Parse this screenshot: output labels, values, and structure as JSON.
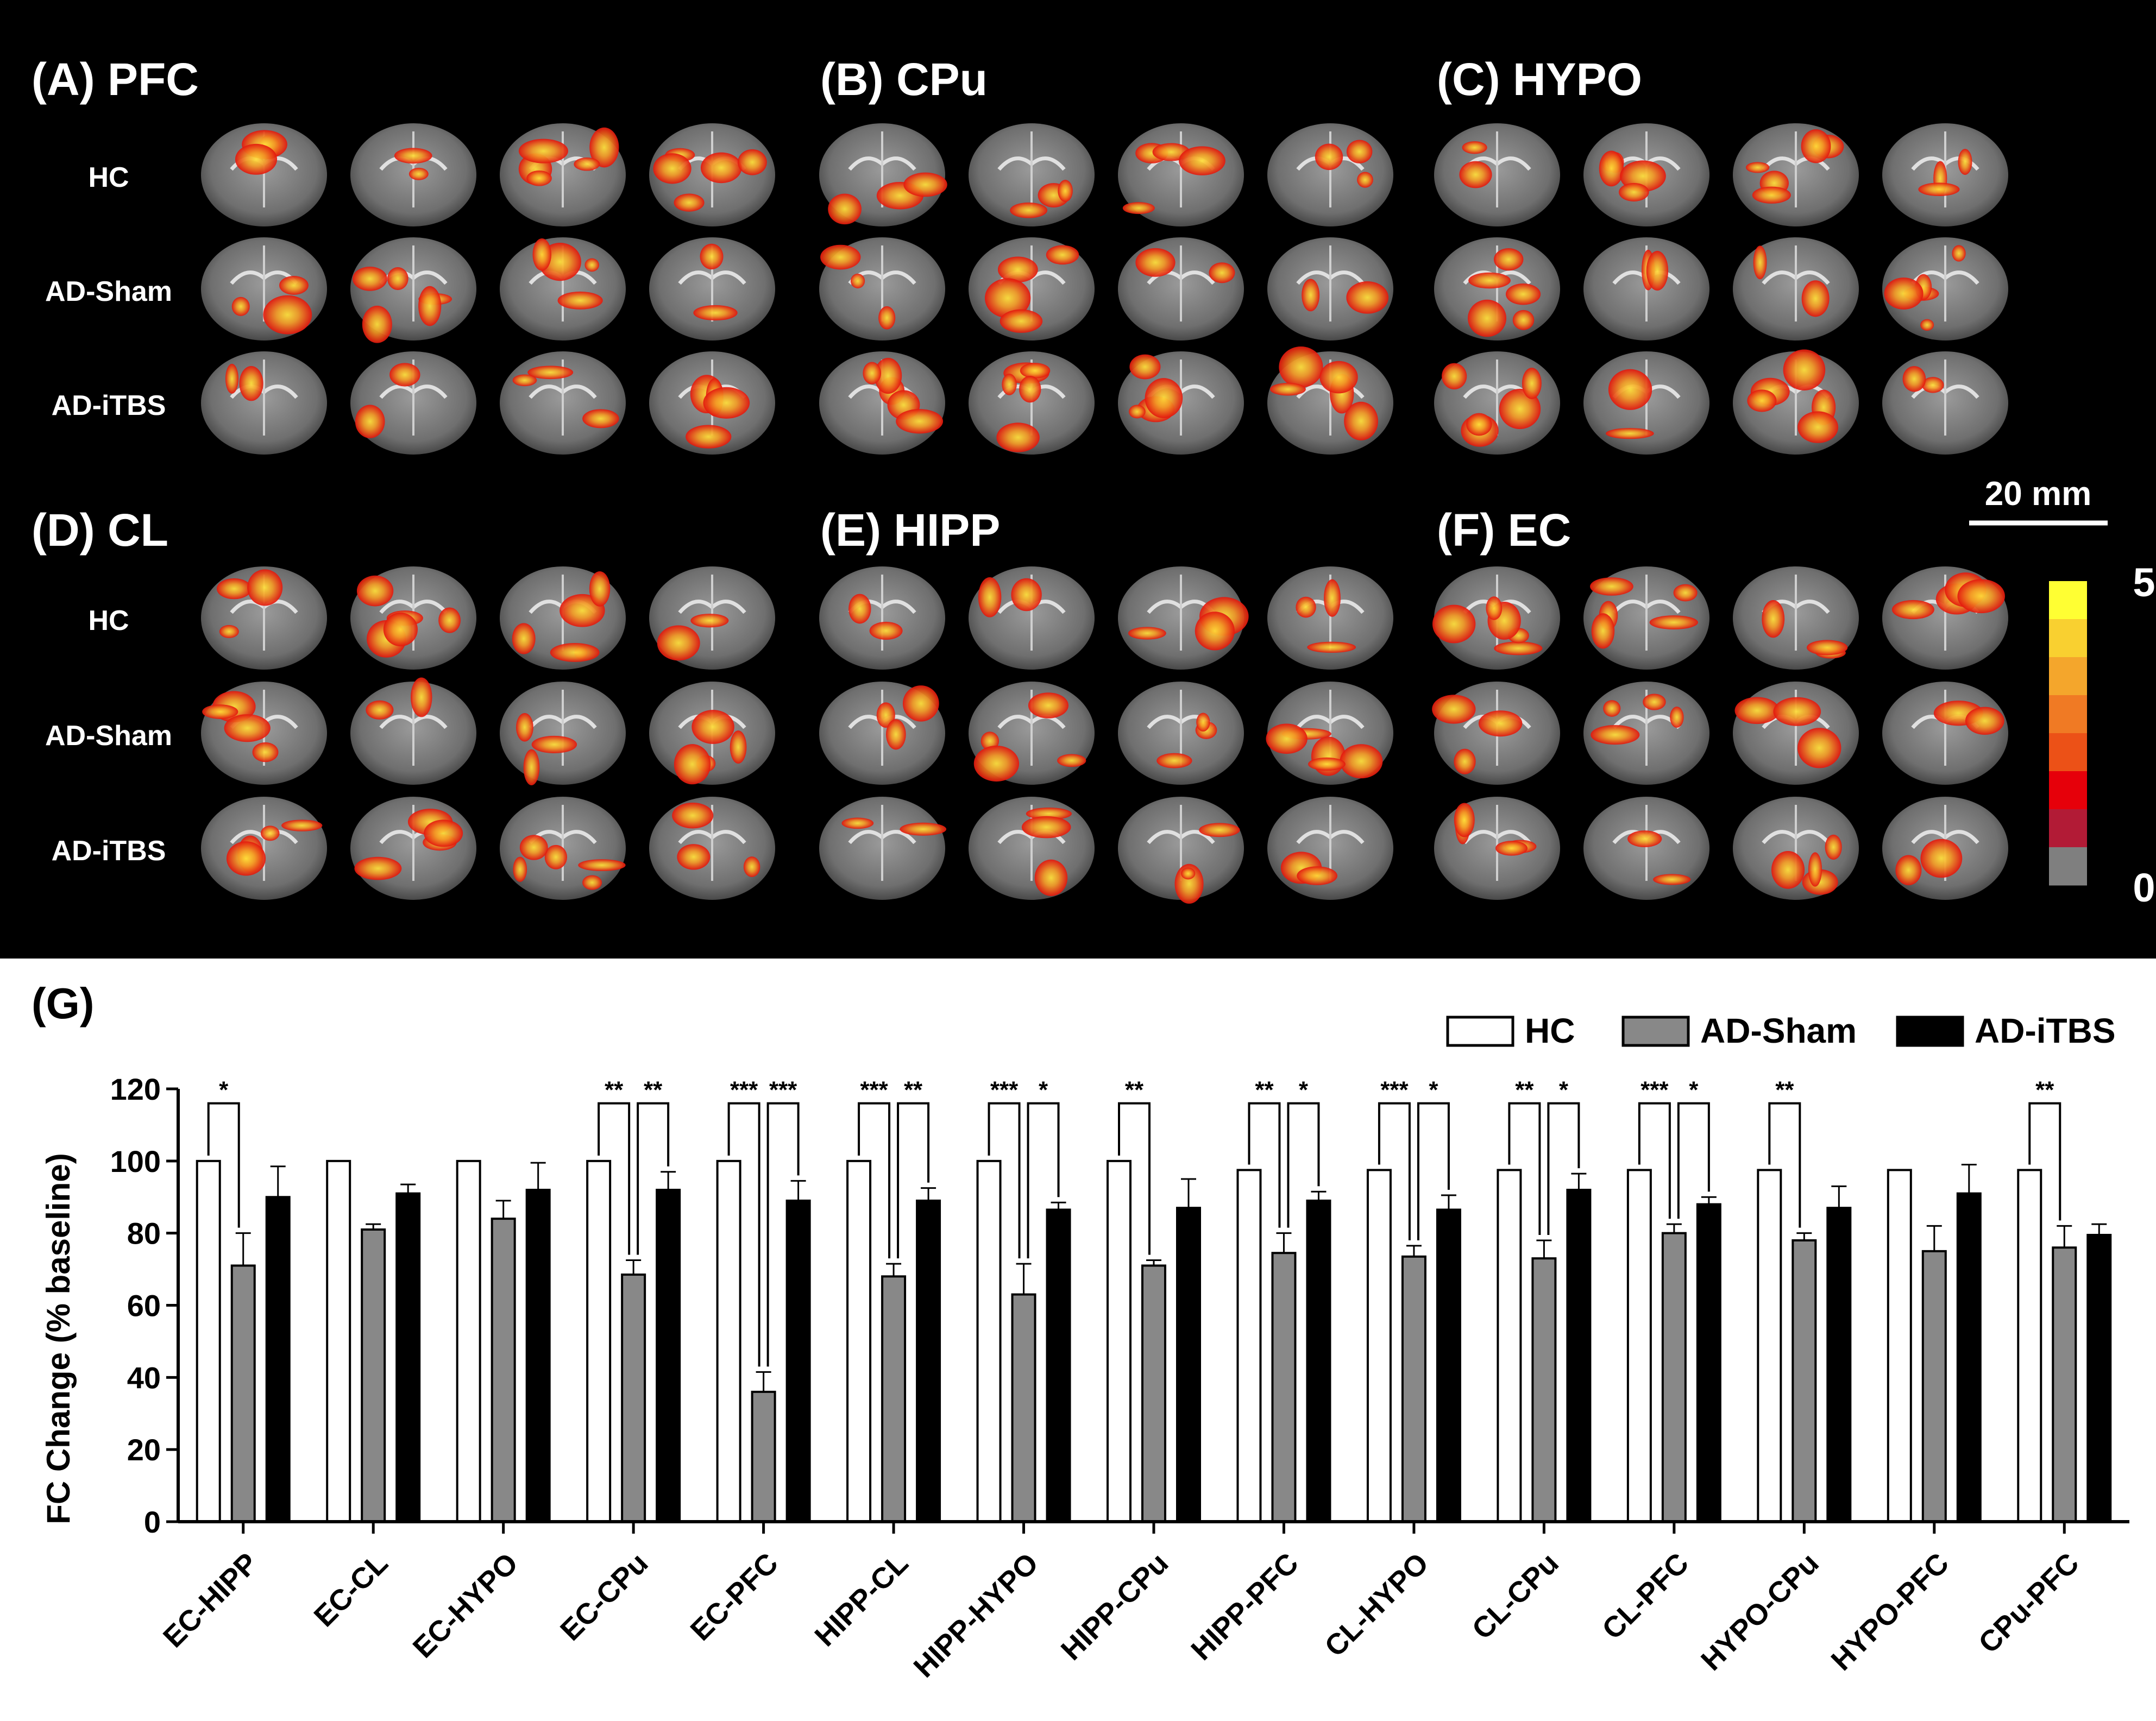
{
  "brain_panels": [
    {
      "label": "(A) PFC"
    },
    {
      "label": "(B) CPu"
    },
    {
      "label": "(C) HYPO"
    },
    {
      "label": "(D) CL"
    },
    {
      "label": "(E) HIPP"
    },
    {
      "label": "(F) EC"
    }
  ],
  "row_labels": [
    "HC",
    "AD-Sham",
    "AD-iTBS"
  ],
  "scale_bar": {
    "label": "20 mm"
  },
  "colorbar": {
    "max_label": "5",
    "min_label": "0",
    "colors": [
      "#ffff33",
      "#f9d030",
      "#f4a62c",
      "#f07a24",
      "#ec5117",
      "#e6000a",
      "#b21b36",
      "#7f7f7f"
    ]
  },
  "colors": {
    "hc": "#ffffff",
    "ad_sham": "#888888",
    "ad_itbs": "#000000"
  },
  "chart_data": {
    "type": "bar",
    "panel_label": "(G)",
    "ylabel": "FC Change (% baseline)",
    "ylim": [
      0,
      120
    ],
    "yticks": [
      0,
      20,
      40,
      60,
      80,
      100,
      120
    ],
    "legend_position": "top-right",
    "categories": [
      "EC-HIPP",
      "EC-CL",
      "EC-HYPO",
      "EC-CPu",
      "EC-PFC",
      "HIPP-CL",
      "HIPP-HYPO",
      "HIPP-CPu",
      "HIPP-PFC",
      "CL-HYPO",
      "CL-CPu",
      "CL-PFC",
      "HYPO-CPu",
      "HYPO-PFC",
      "CPu-PFC"
    ],
    "series": [
      {
        "name": "HC",
        "values": [
          100,
          100,
          100,
          100,
          100,
          100,
          100,
          100,
          97.5,
          97.5,
          97.5,
          97.5,
          97.5,
          97.5,
          97.5
        ],
        "errors": [
          0,
          0,
          0,
          0,
          0,
          0,
          0,
          0,
          0,
          0,
          0,
          0,
          0,
          0,
          0
        ]
      },
      {
        "name": "AD-Sham",
        "values": [
          71,
          81,
          84,
          68.5,
          36,
          68,
          63,
          71,
          74.5,
          73.5,
          73,
          80,
          78,
          75,
          76
        ],
        "errors": [
          9,
          1.5,
          5,
          4,
          5.5,
          3.5,
          8.5,
          1.5,
          5.5,
          3,
          5,
          2.5,
          2,
          7,
          6
        ]
      },
      {
        "name": "AD-iTBS",
        "values": [
          90,
          91,
          92,
          92,
          89,
          89,
          86.5,
          87,
          89,
          86.5,
          92,
          88,
          87,
          91,
          79.5
        ],
        "errors": [
          8.5,
          2.5,
          7.5,
          5,
          5.5,
          3.5,
          2,
          8,
          2.5,
          4,
          4.5,
          2,
          6,
          8,
          3
        ]
      }
    ],
    "significance": [
      {
        "category": "EC-HIPP",
        "compare": "HC-ADSham",
        "label": "*"
      },
      {
        "category": "EC-CPu",
        "compare": "HC-ADSham",
        "label": "**"
      },
      {
        "category": "EC-CPu",
        "compare": "ADSham-ADiTBS",
        "label": "**"
      },
      {
        "category": "EC-PFC",
        "compare": "HC-ADSham",
        "label": "***"
      },
      {
        "category": "EC-PFC",
        "compare": "ADSham-ADiTBS",
        "label": "***"
      },
      {
        "category": "HIPP-CL",
        "compare": "HC-ADSham",
        "label": "***"
      },
      {
        "category": "HIPP-CL",
        "compare": "ADSham-ADiTBS",
        "label": "**"
      },
      {
        "category": "HIPP-HYPO",
        "compare": "HC-ADSham",
        "label": "***"
      },
      {
        "category": "HIPP-HYPO",
        "compare": "ADSham-ADiTBS",
        "label": "*"
      },
      {
        "category": "HIPP-CPu",
        "compare": "HC-ADSham",
        "label": "**"
      },
      {
        "category": "HIPP-PFC",
        "compare": "HC-ADSham",
        "label": "**"
      },
      {
        "category": "HIPP-PFC",
        "compare": "ADSham-ADiTBS",
        "label": "*"
      },
      {
        "category": "CL-HYPO",
        "compare": "HC-ADSham",
        "label": "***"
      },
      {
        "category": "CL-HYPO",
        "compare": "ADSham-ADiTBS",
        "label": "*"
      },
      {
        "category": "CL-CPu",
        "compare": "HC-ADSham",
        "label": "**"
      },
      {
        "category": "CL-CPu",
        "compare": "ADSham-ADiTBS",
        "label": "*"
      },
      {
        "category": "CL-PFC",
        "compare": "HC-ADSham",
        "label": "***"
      },
      {
        "category": "CL-PFC",
        "compare": "ADSham-ADiTBS",
        "label": "*"
      },
      {
        "category": "HYPO-CPu",
        "compare": "HC-ADSham",
        "label": "**"
      },
      {
        "category": "CPu-PFC",
        "compare": "HC-ADSham",
        "label": "**"
      }
    ]
  }
}
